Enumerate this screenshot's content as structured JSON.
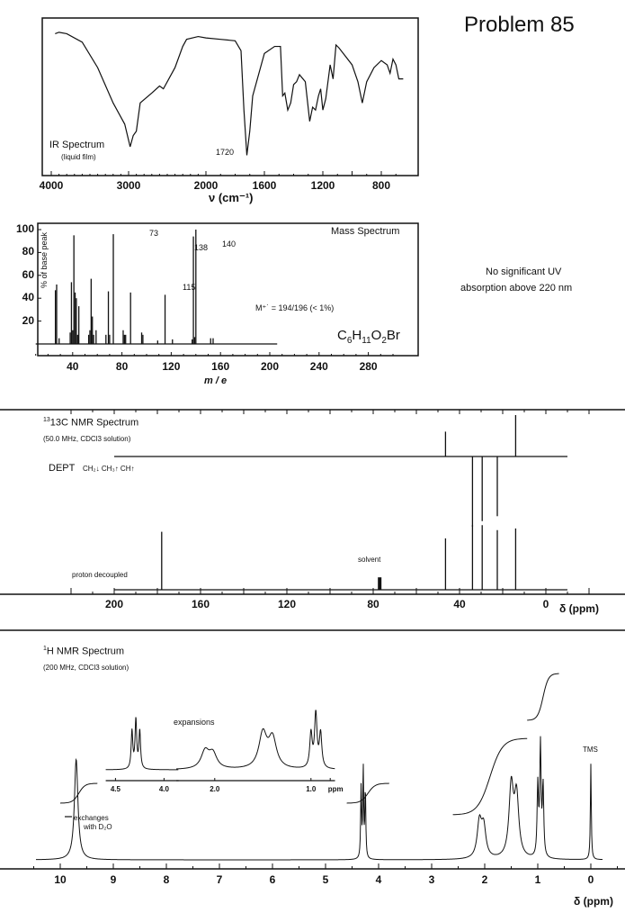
{
  "title": "Problem 85",
  "uv_note": {
    "line1": "No significant UV",
    "line2": "absorption above 220 nm"
  },
  "chart_data": [
    {
      "type": "line",
      "id": "ir",
      "label": "IR Spectrum",
      "sublabel": "(liquid film)",
      "xlabel": "ν (cm⁻¹)",
      "annotation": "1720",
      "xticks": [
        "4000",
        "3000",
        "2000",
        "1600",
        "1200",
        "800"
      ],
      "xlim": [
        4000,
        600
      ],
      "ylim": [
        0,
        100
      ],
      "x": [
        3950,
        3900,
        3800,
        3600,
        3400,
        3200,
        3050,
        2980,
        2940,
        2900,
        2850,
        2700,
        2600,
        2550,
        2400,
        2300,
        2250,
        2100,
        2000,
        1900,
        1800,
        1760,
        1740,
        1720,
        1700,
        1680,
        1600,
        1530,
        1490,
        1475,
        1460,
        1440,
        1420,
        1400,
        1380,
        1360,
        1320,
        1290,
        1270,
        1250,
        1230,
        1215,
        1200,
        1180,
        1150,
        1130,
        1110,
        1090,
        1060,
        1000,
        960,
        930,
        900,
        850,
        800,
        760,
        740,
        720,
        700,
        680,
        650
      ],
      "y": [
        94,
        95,
        94,
        88,
        70,
        45,
        30,
        14,
        22,
        25,
        45,
        52,
        57,
        55,
        70,
        85,
        90,
        92,
        91,
        90,
        89,
        82,
        40,
        8,
        25,
        50,
        80,
        85,
        85,
        50,
        52,
        40,
        45,
        58,
        60,
        65,
        60,
        32,
        42,
        40,
        50,
        55,
        40,
        48,
        72,
        62,
        86,
        84,
        80,
        72,
        60,
        45,
        60,
        70,
        75,
        72,
        66,
        76,
        72,
        62,
        62
      ]
    },
    {
      "type": "bar",
      "id": "ms",
      "label": "Mass Spectrum",
      "xlabel": "m / e",
      "ylabel": "% of base peak",
      "xticks": [
        "40",
        "80",
        "120",
        "160",
        "200",
        "240",
        "280"
      ],
      "yticks": [
        "100",
        "80",
        "60",
        "40",
        "20"
      ],
      "xlim": [
        0,
        310
      ],
      "ylim": [
        0,
        100
      ],
      "annotations": {
        "p73": "73",
        "p138": "138",
        "p140": "140",
        "p115": "115",
        "molecular_ion": "M⁺˙ = 194/196  (< 1%)"
      },
      "formula": "C6H11O2Br",
      "x": [
        26,
        27,
        29,
        38,
        39,
        40,
        41,
        42,
        43,
        44,
        45,
        53,
        54,
        55,
        56,
        57,
        59,
        67,
        69,
        70,
        73,
        81,
        82,
        83,
        87,
        96,
        97,
        109,
        115,
        121,
        137,
        138,
        139,
        140,
        152,
        154
      ],
      "y": [
        47,
        52,
        5,
        10,
        54,
        12,
        95,
        45,
        40,
        8,
        33,
        8,
        12,
        57,
        24,
        8,
        12,
        8,
        46,
        8,
        96,
        12,
        8,
        8,
        45,
        10,
        8,
        3,
        43,
        4,
        4,
        94,
        6,
        100,
        5,
        5
      ]
    },
    {
      "type": "bar",
      "id": "c13",
      "label": "13C NMR Spectrum",
      "sublabel": "(50.0 MHz, CDCl3 solution)",
      "dept_label": "DEPT",
      "dept_legend": "CH₂↓ CH₃↑ CH↑",
      "solvent_label": "solvent",
      "decoupled_label": "proton decoupled",
      "xlabel": "δ (ppm)",
      "xticks": [
        "200",
        "160",
        "120",
        "80",
        "40",
        "0"
      ],
      "xlim": [
        220,
        -10
      ],
      "decoupled": {
        "x": [
          178,
          77,
          46.5,
          34,
          29.5,
          22.5,
          14
        ],
        "y": [
          0.7,
          0.15,
          0.62,
          0.78,
          0.78,
          0.72,
          0.74
        ]
      },
      "dept": {
        "x": [
          46.5,
          34,
          29.5,
          22.5,
          14
        ],
        "y": [
          0.6,
          -1.0,
          -0.92,
          -0.85,
          1.0
        ]
      }
    },
    {
      "type": "line",
      "id": "h1",
      "label": "H NMR Spectrum",
      "sublabel": "(200 MHz, CDCl3 solution)",
      "expansions_label": "expansions",
      "exchange_note_1": "exchanges",
      "exchange_note_2": "with D₂O",
      "tms_label": "TMS",
      "xlabel": "δ (ppm)",
      "xticks": [
        "10",
        "9",
        "8",
        "7",
        "6",
        "5",
        "4",
        "3",
        "2",
        "1",
        "0"
      ],
      "xlim": [
        10.2,
        -0.3
      ],
      "inset_ticks": [
        "4.5",
        "4.0",
        "2.0",
        "1.0",
        "ppm"
      ],
      "peaks": [
        {
          "ppm": 9.7,
          "h": 1.0,
          "w": 0.04
        },
        {
          "ppm": 4.33,
          "h": 0.7,
          "w": 0.01
        },
        {
          "ppm": 4.29,
          "h": 0.9,
          "w": 0.01
        },
        {
          "ppm": 4.25,
          "h": 0.7,
          "w": 0.01
        },
        {
          "ppm": 2.1,
          "h": 0.35,
          "w": 0.05
        },
        {
          "ppm": 2.02,
          "h": 0.3,
          "w": 0.05
        },
        {
          "ppm": 1.5,
          "h": 0.7,
          "w": 0.05
        },
        {
          "ppm": 1.4,
          "h": 0.6,
          "w": 0.05
        },
        {
          "ppm": 1.0,
          "h": 0.7,
          "w": 0.015
        },
        {
          "ppm": 0.95,
          "h": 1.1,
          "w": 0.015
        },
        {
          "ppm": 0.9,
          "h": 0.7,
          "w": 0.015
        },
        {
          "ppm": 0.0,
          "h": 0.95,
          "w": 0.01
        }
      ],
      "integrals": [
        {
          "from": 10.0,
          "to": 9.3,
          "rise": 1
        },
        {
          "from": 4.6,
          "to": 3.8,
          "rise": 1
        },
        {
          "from": 2.6,
          "to": 1.2,
          "rise": 6
        },
        {
          "from": 1.2,
          "to": 0.6,
          "rise": 3
        }
      ]
    }
  ]
}
